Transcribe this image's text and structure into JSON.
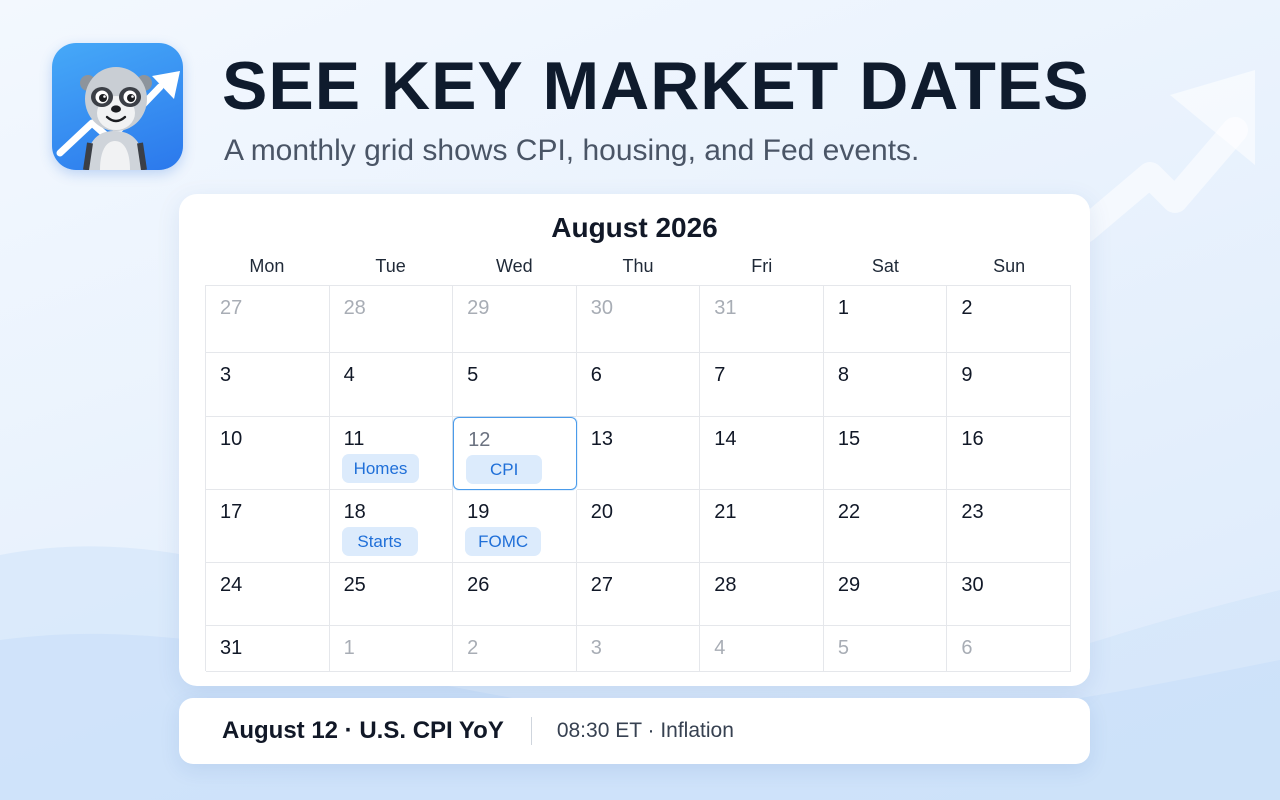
{
  "header": {
    "title": "SEE KEY MARKET DATES",
    "subtitle": "A monthly grid shows CPI, housing, and Fed events."
  },
  "app_icon": {
    "name": "meerkat-chart-icon",
    "colors": {
      "bg_top": "#46a9f8",
      "bg_bottom": "#2b78ec"
    }
  },
  "calendar": {
    "month_title": "August 2026",
    "weekdays": [
      "Mon",
      "Tue",
      "Wed",
      "Thu",
      "Fri",
      "Sat",
      "Sun"
    ],
    "selected_day": "12",
    "weeks": [
      [
        {
          "day": "27",
          "muted": true
        },
        {
          "day": "28",
          "muted": true
        },
        {
          "day": "29",
          "muted": true
        },
        {
          "day": "30",
          "muted": true
        },
        {
          "day": "31",
          "muted": true
        },
        {
          "day": "1"
        },
        {
          "day": "2"
        }
      ],
      [
        {
          "day": "3"
        },
        {
          "day": "4"
        },
        {
          "day": "5"
        },
        {
          "day": "6"
        },
        {
          "day": "7"
        },
        {
          "day": "8"
        },
        {
          "day": "9"
        }
      ],
      [
        {
          "day": "10"
        },
        {
          "day": "11",
          "event": "Homes"
        },
        {
          "day": "12",
          "event": "CPI",
          "selected": true
        },
        {
          "day": "13"
        },
        {
          "day": "14"
        },
        {
          "day": "15"
        },
        {
          "day": "16"
        }
      ],
      [
        {
          "day": "17"
        },
        {
          "day": "18",
          "event": "Starts"
        },
        {
          "day": "19",
          "event": "FOMC"
        },
        {
          "day": "20"
        },
        {
          "day": "21"
        },
        {
          "day": "22"
        },
        {
          "day": "23"
        }
      ],
      [
        {
          "day": "24"
        },
        {
          "day": "25"
        },
        {
          "day": "26"
        },
        {
          "day": "27"
        },
        {
          "day": "28"
        },
        {
          "day": "29"
        },
        {
          "day": "30"
        }
      ],
      [
        {
          "day": "31"
        },
        {
          "day": "1",
          "muted": true
        },
        {
          "day": "2",
          "muted": true
        },
        {
          "day": "3",
          "muted": true
        },
        {
          "day": "4",
          "muted": true
        },
        {
          "day": "5",
          "muted": true
        },
        {
          "day": "6",
          "muted": true
        }
      ]
    ]
  },
  "detail": {
    "title": "August 12 · U.S. CPI YoY",
    "meta": "08:30 ET · Inflation"
  },
  "colors": {
    "accent": "#4a9bea",
    "event_tag_bg": "#dcebfc",
    "event_tag_text": "#1f6fd8"
  }
}
